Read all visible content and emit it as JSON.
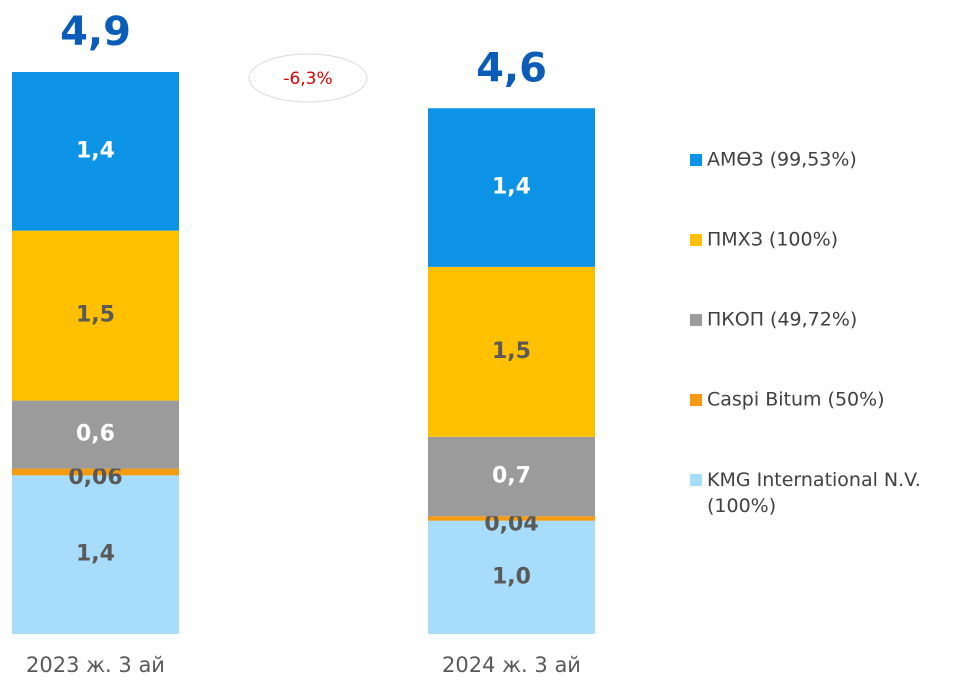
{
  "chart_data": {
    "type": "stacked-bar",
    "categories": [
      "2023 ж. 3 ай",
      "2024 ж. 3 ай"
    ],
    "series": [
      {
        "name": "KMG International N.V. (100%)",
        "color": "#a8dcfb",
        "label_color": "#595959",
        "values": [
          1.4,
          1.0
        ],
        "value_labels": [
          "1,4",
          "1,0"
        ]
      },
      {
        "name": "Caspi Bitum (50%)",
        "color": "#f39c12",
        "label_color": "#595959",
        "values": [
          0.06,
          0.04
        ],
        "value_labels": [
          "0,06",
          "0,04"
        ]
      },
      {
        "name": "ПКОП (49,72%)",
        "color": "#9b9b9b",
        "label_color": "#ffffff",
        "values": [
          0.6,
          0.7
        ],
        "value_labels": [
          "0,6",
          "0,7"
        ]
      },
      {
        "name": "ПМХЗ (100%)",
        "color": "#ffc000",
        "label_color": "#595959",
        "values": [
          1.5,
          1.5
        ],
        "value_labels": [
          "1,5",
          "1,5"
        ]
      },
      {
        "name": "АМӨЗ (99,53%)",
        "color": "#0d93e6",
        "label_color": "#ffffff",
        "values": [
          1.4,
          1.4
        ],
        "value_labels": [
          "1,4",
          "1,4"
        ]
      }
    ],
    "totals": {
      "values": [
        4.9,
        4.6
      ],
      "value_labels": [
        "4,9",
        "4,6"
      ],
      "color": "#0a5cb8"
    },
    "annotation": "-6,3%"
  }
}
